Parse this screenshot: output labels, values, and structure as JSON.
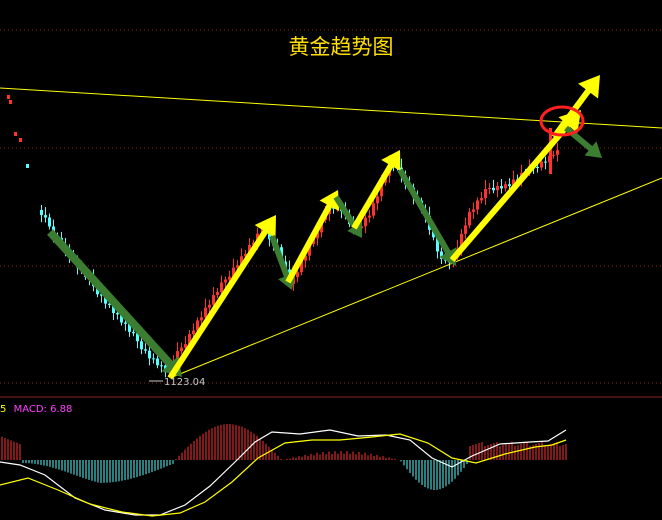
{
  "chart_data": {
    "type": "candlestick",
    "title": "黄金趋势图",
    "low_label": "1123.04",
    "macd": {
      "prefix": "5",
      "name": "MACD:",
      "value": "6.88"
    },
    "colors": {
      "background": "#000000",
      "up": "#ff3232",
      "down": "#54ffff",
      "title": "#ffe000",
      "trendline": "#ffff00",
      "arrow_up": "#ffff00",
      "arrow_down": "#3c7d32",
      "macd_label": "#ff40ff",
      "dif_line": "#ffffff",
      "dea_line": "#ffff00",
      "grid": "#8a1f1f",
      "circle": "#ff2020"
    },
    "grid": true,
    "icons": {
      "arrows": "trend-arrow-icon",
      "circle": "breakout-circle-icon"
    }
  }
}
